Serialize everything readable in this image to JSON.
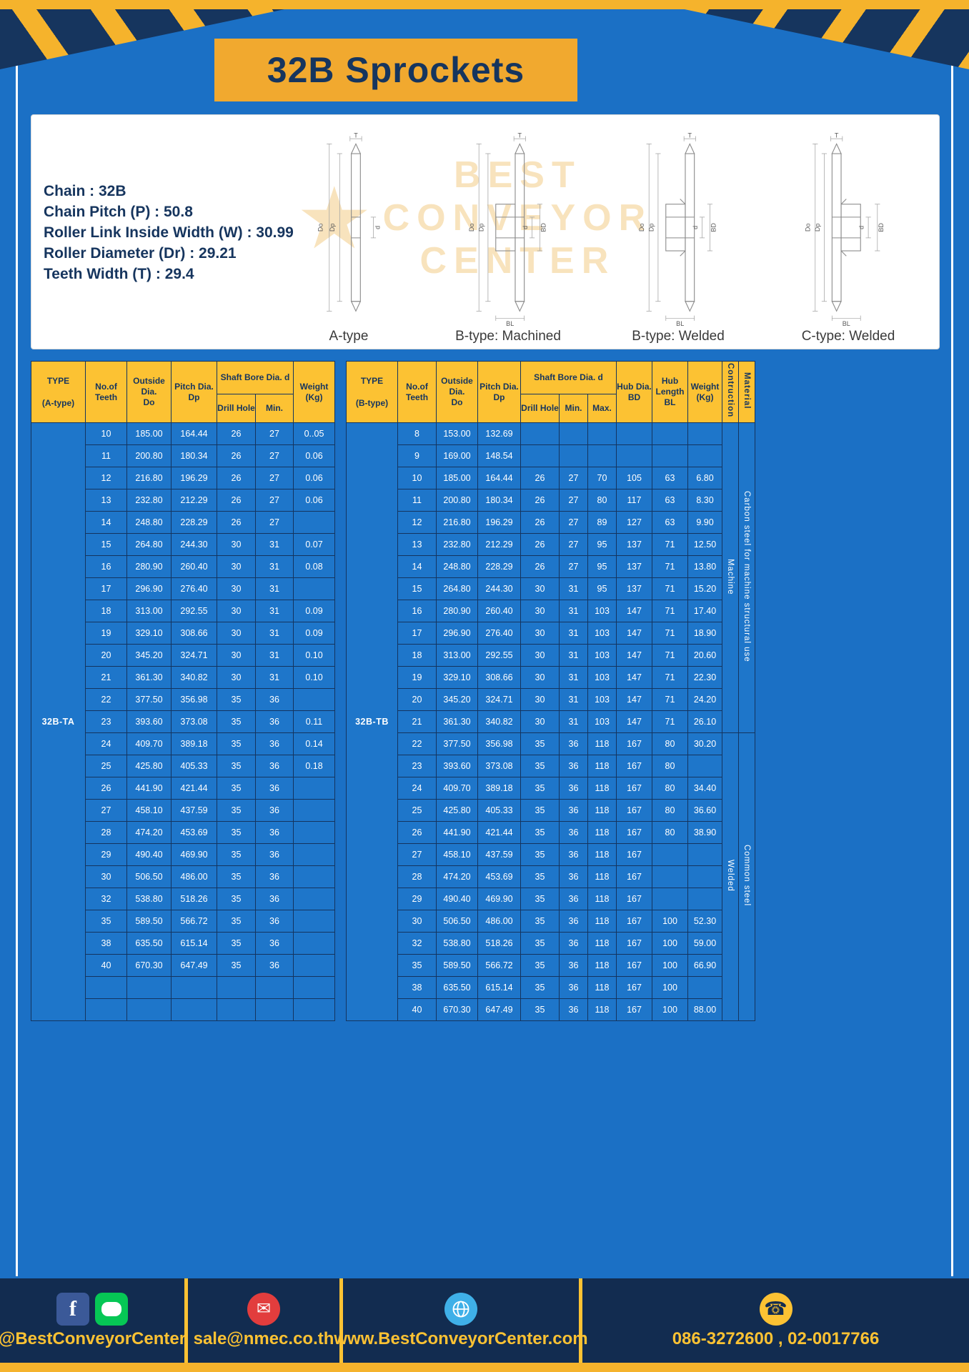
{
  "title": "32B Sprockets",
  "specs": {
    "lines": [
      "Chain : 32B",
      "Chain Pitch (P) : 50.8",
      "Roller Link Inside Width (W) : 30.99",
      "Roller Diameter (Dr) : 29.21",
      "Teeth Width (T) : 29.4"
    ]
  },
  "watermark": {
    "lines": [
      "BEST",
      "CONVEYOR",
      "CENTER"
    ]
  },
  "diagrams": {
    "captions": [
      "A-type",
      "B-type: Machined",
      "B-type: Welded",
      "C-type: Welded"
    ],
    "dims": {
      "T": "T",
      "Do": "Do",
      "Dp": "Dp",
      "d": "d",
      "BD": "BD",
      "BL": "BL"
    }
  },
  "table_a": {
    "head": {
      "type": "TYPE",
      "type_sub": "(A-type)",
      "teeth": "No.of\nTeeth",
      "outside": "Outside\nDia.\nDo",
      "pitch": "Pitch Dia.\nDp",
      "shaft": "Shaft Bore Dia. d",
      "drill": "Drill Hole",
      "min": "Min.",
      "weight": "Weight\n(Kg)"
    },
    "type_value": "32B-TA",
    "rows": [
      [
        "10",
        "185.00",
        "164.44",
        "26",
        "27",
        "0..05"
      ],
      [
        "11",
        "200.80",
        "180.34",
        "26",
        "27",
        "0.06"
      ],
      [
        "12",
        "216.80",
        "196.29",
        "26",
        "27",
        "0.06"
      ],
      [
        "13",
        "232.80",
        "212.29",
        "26",
        "27",
        "0.06"
      ],
      [
        "14",
        "248.80",
        "228.29",
        "26",
        "27",
        ""
      ],
      [
        "15",
        "264.80",
        "244.30",
        "30",
        "31",
        "0.07"
      ],
      [
        "16",
        "280.90",
        "260.40",
        "30",
        "31",
        "0.08"
      ],
      [
        "17",
        "296.90",
        "276.40",
        "30",
        "31",
        ""
      ],
      [
        "18",
        "313.00",
        "292.55",
        "30",
        "31",
        "0.09"
      ],
      [
        "19",
        "329.10",
        "308.66",
        "30",
        "31",
        "0.09"
      ],
      [
        "20",
        "345.20",
        "324.71",
        "30",
        "31",
        "0.10"
      ],
      [
        "21",
        "361.30",
        "340.82",
        "30",
        "31",
        "0.10"
      ],
      [
        "22",
        "377.50",
        "356.98",
        "35",
        "36",
        ""
      ],
      [
        "23",
        "393.60",
        "373.08",
        "35",
        "36",
        "0.11"
      ],
      [
        "24",
        "409.70",
        "389.18",
        "35",
        "36",
        "0.14"
      ],
      [
        "25",
        "425.80",
        "405.33",
        "35",
        "36",
        "0.18"
      ],
      [
        "26",
        "441.90",
        "421.44",
        "35",
        "36",
        ""
      ],
      [
        "27",
        "458.10",
        "437.59",
        "35",
        "36",
        ""
      ],
      [
        "28",
        "474.20",
        "453.69",
        "35",
        "36",
        ""
      ],
      [
        "29",
        "490.40",
        "469.90",
        "35",
        "36",
        ""
      ],
      [
        "30",
        "506.50",
        "486.00",
        "35",
        "36",
        ""
      ],
      [
        "32",
        "538.80",
        "518.26",
        "35",
        "36",
        ""
      ],
      [
        "35",
        "589.50",
        "566.72",
        "35",
        "36",
        ""
      ],
      [
        "38",
        "635.50",
        "615.14",
        "35",
        "36",
        ""
      ],
      [
        "40",
        "670.30",
        "647.49",
        "35",
        "36",
        ""
      ],
      [
        "",
        "",
        "",
        "",
        "",
        ""
      ],
      [
        "",
        "",
        "",
        "",
        "",
        ""
      ]
    ]
  },
  "table_b": {
    "head": {
      "type": "TYPE",
      "type_sub": "(B-type)",
      "teeth": "No.of\nTeeth",
      "outside": "Outside\nDia.\nDo",
      "pitch": "Pitch Dia.\nDp",
      "shaft": "Shaft Bore Dia. d",
      "drill": "Drill Hole",
      "min": "Min.",
      "max": "Max.",
      "hub_dia": "Hub Dia.\nBD",
      "hub_len": "Hub\nLength\nBL",
      "weight": "Weight\n(Kg)",
      "construction": "Contruction",
      "material": "Material"
    },
    "type_value": "32B-TB",
    "rows": [
      [
        "8",
        "153.00",
        "132.69",
        "",
        "",
        "",
        "",
        "",
        ""
      ],
      [
        "9",
        "169.00",
        "148.54",
        "",
        "",
        "",
        "",
        "",
        ""
      ],
      [
        "10",
        "185.00",
        "164.44",
        "26",
        "27",
        "70",
        "105",
        "63",
        "6.80"
      ],
      [
        "11",
        "200.80",
        "180.34",
        "26",
        "27",
        "80",
        "117",
        "63",
        "8.30"
      ],
      [
        "12",
        "216.80",
        "196.29",
        "26",
        "27",
        "89",
        "127",
        "63",
        "9.90"
      ],
      [
        "13",
        "232.80",
        "212.29",
        "26",
        "27",
        "95",
        "137",
        "71",
        "12.50"
      ],
      [
        "14",
        "248.80",
        "228.29",
        "26",
        "27",
        "95",
        "137",
        "71",
        "13.80"
      ],
      [
        "15",
        "264.80",
        "244.30",
        "30",
        "31",
        "95",
        "137",
        "71",
        "15.20"
      ],
      [
        "16",
        "280.90",
        "260.40",
        "30",
        "31",
        "103",
        "147",
        "71",
        "17.40"
      ],
      [
        "17",
        "296.90",
        "276.40",
        "30",
        "31",
        "103",
        "147",
        "71",
        "18.90"
      ],
      [
        "18",
        "313.00",
        "292.55",
        "30",
        "31",
        "103",
        "147",
        "71",
        "20.60"
      ],
      [
        "19",
        "329.10",
        "308.66",
        "30",
        "31",
        "103",
        "147",
        "71",
        "22.30"
      ],
      [
        "20",
        "345.20",
        "324.71",
        "30",
        "31",
        "103",
        "147",
        "71",
        "24.20"
      ],
      [
        "21",
        "361.30",
        "340.82",
        "30",
        "31",
        "103",
        "147",
        "71",
        "26.10"
      ],
      [
        "22",
        "377.50",
        "356.98",
        "35",
        "36",
        "118",
        "167",
        "80",
        "30.20"
      ],
      [
        "23",
        "393.60",
        "373.08",
        "35",
        "36",
        "118",
        "167",
        "80",
        ""
      ],
      [
        "24",
        "409.70",
        "389.18",
        "35",
        "36",
        "118",
        "167",
        "80",
        "34.40"
      ],
      [
        "25",
        "425.80",
        "405.33",
        "35",
        "36",
        "118",
        "167",
        "80",
        "36.60"
      ],
      [
        "26",
        "441.90",
        "421.44",
        "35",
        "36",
        "118",
        "167",
        "80",
        "38.90"
      ],
      [
        "27",
        "458.10",
        "437.59",
        "35",
        "36",
        "118",
        "167",
        "",
        ""
      ],
      [
        "28",
        "474.20",
        "453.69",
        "35",
        "36",
        "118",
        "167",
        "",
        ""
      ],
      [
        "29",
        "490.40",
        "469.90",
        "35",
        "36",
        "118",
        "167",
        "",
        ""
      ],
      [
        "30",
        "506.50",
        "486.00",
        "35",
        "36",
        "118",
        "167",
        "100",
        "52.30"
      ],
      [
        "32",
        "538.80",
        "518.26",
        "35",
        "36",
        "118",
        "167",
        "100",
        "59.00"
      ],
      [
        "35",
        "589.50",
        "566.72",
        "35",
        "36",
        "118",
        "167",
        "100",
        "66.90"
      ],
      [
        "38",
        "635.50",
        "615.14",
        "35",
        "36",
        "118",
        "167",
        "100",
        ""
      ],
      [
        "40",
        "670.30",
        "647.49",
        "35",
        "36",
        "118",
        "167",
        "100",
        "88.00"
      ]
    ],
    "construction": [
      {
        "label": "Machine",
        "rows": 14
      },
      {
        "label": "Welded",
        "rows": 13
      }
    ],
    "material": [
      {
        "label": "Carbon steel for machine structural use",
        "rows": 14
      },
      {
        "label": "Common steel",
        "rows": 13
      }
    ]
  },
  "footer": {
    "items": [
      {
        "icon": "facebook-line-icons",
        "text": "@BestConveyorCenter"
      },
      {
        "icon": "email-icon",
        "text": "sale@nmec.co.th"
      },
      {
        "icon": "globe-icon",
        "text": "www.BestConveyorCenter.com"
      },
      {
        "icon": "phone-icon",
        "text": "086-3272600 , 02-0017766"
      }
    ]
  }
}
